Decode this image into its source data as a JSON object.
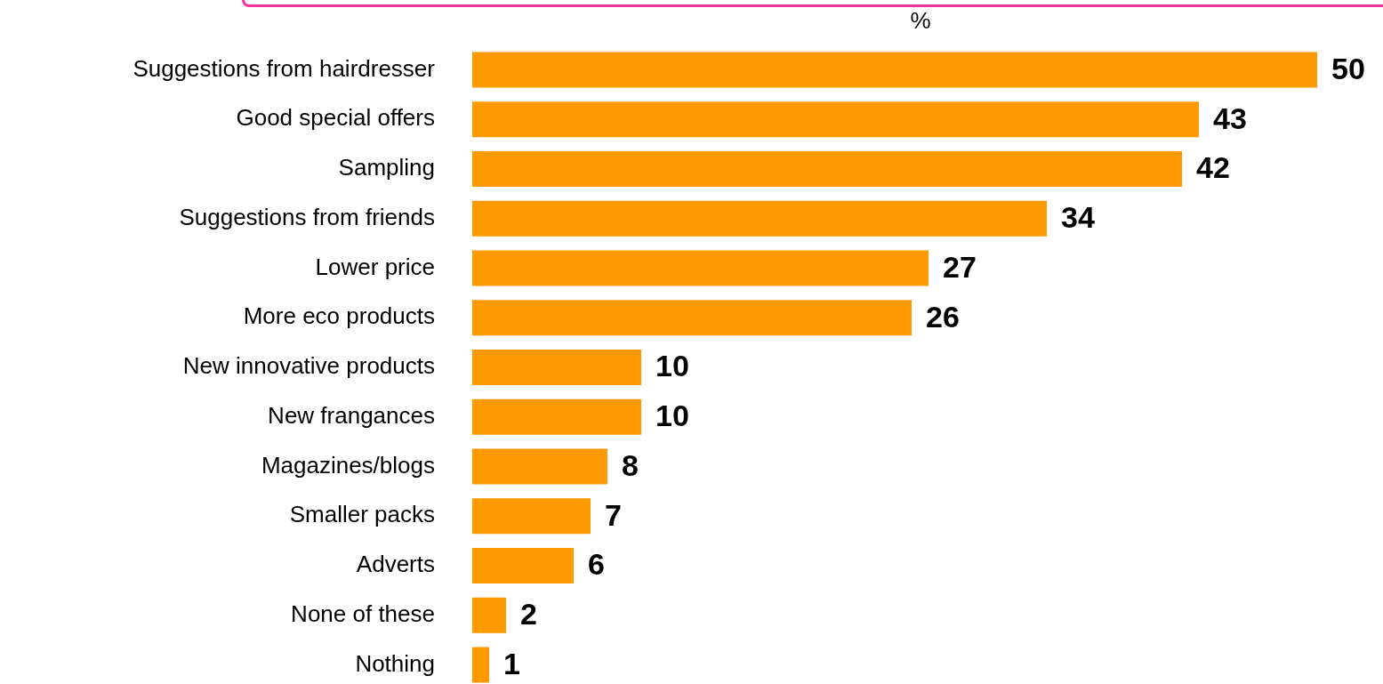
{
  "chart_data": {
    "type": "bar",
    "orientation": "horizontal",
    "subtitle": "%",
    "categories": [
      "Suggestions from hairdresser",
      "Good special offers",
      "Sampling",
      "Suggestions from friends",
      "Lower price",
      "More eco products",
      "New innovative products",
      "New frangances",
      "Magazines/blogs",
      "Smaller packs",
      "Adverts",
      "None of these",
      "Nothing"
    ],
    "values": [
      50,
      43,
      42,
      34,
      27,
      26,
      10,
      10,
      8,
      7,
      6,
      2,
      1
    ],
    "color": "#ff9900",
    "data_labels": true,
    "legend": false,
    "tick_labels": "y"
  }
}
